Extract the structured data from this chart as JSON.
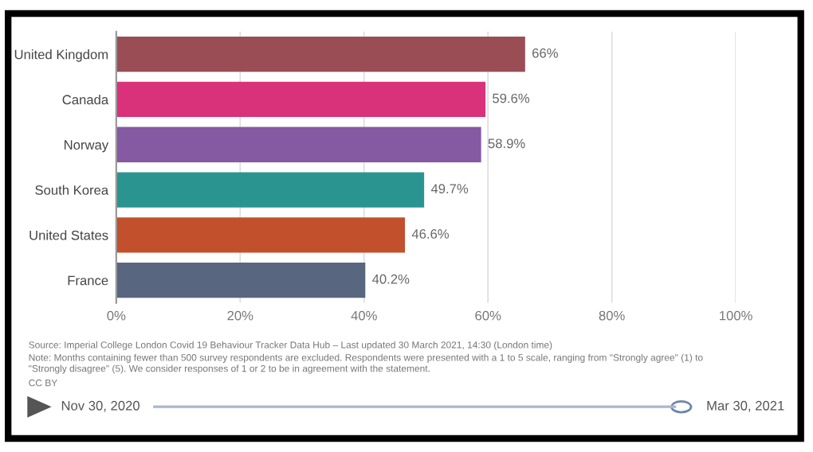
{
  "chart_data": {
    "type": "bar",
    "orientation": "horizontal",
    "categories": [
      "United Kingdom",
      "Canada",
      "Norway",
      "South Korea",
      "United States",
      "France"
    ],
    "values": [
      66,
      59.6,
      58.9,
      49.7,
      46.6,
      40.2
    ],
    "colors": [
      "#9b4d55",
      "#d9317a",
      "#8659a3",
      "#2a9590",
      "#c2502c",
      "#58667f"
    ],
    "value_labels": [
      "66%",
      "59.6%",
      "58.9%",
      "49.7%",
      "46.6%",
      "40.2%"
    ],
    "xlim": [
      0,
      100
    ],
    "xticks": [
      {
        "value": 0,
        "label": "0%"
      },
      {
        "value": 20,
        "label": "20%"
      },
      {
        "value": 40,
        "label": "40%"
      },
      {
        "value": 60,
        "label": "60%"
      },
      {
        "value": 80,
        "label": "80%"
      },
      {
        "value": 100,
        "label": "100%"
      }
    ],
    "grid": "x",
    "annotations": [
      "Source: Imperial College London Covid 19 Behaviour Tracker Data Hub – Last updated 30 March 2021, 14:30 (London time)",
      "Note: Months containing fewer than 500 survey respondents are excluded. Respondents were presented with a 1 to 5 scale, ranging from \"Strongly agree\" (1) to \"Strongly disagree\" (5). We consider responses of 1 or 2 to be in agreement with the statement.",
      "CC BY",
      "Nov 30, 2020",
      "Mar 30, 2021"
    ]
  }
}
